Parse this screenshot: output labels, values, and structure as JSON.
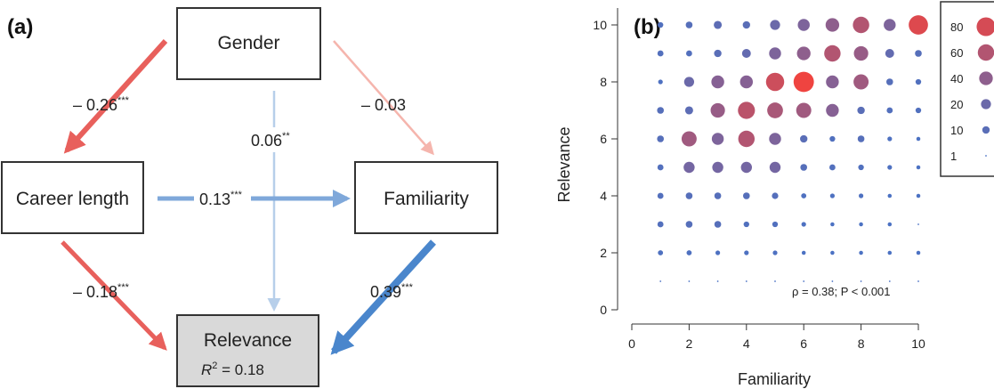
{
  "panel_a": {
    "label": "(a)",
    "nodes": {
      "gender": "Gender",
      "career": "Career length",
      "familiarity": "Familiarity",
      "relevance": "Relevance",
      "r2_prefix": "R",
      "r2_sup": "2",
      "r2_value": " = 0.18"
    },
    "paths": {
      "gender_career": {
        "coef": "– 0.26",
        "sig": "***"
      },
      "gender_familiarity": {
        "coef": "– 0.03",
        "sig": ""
      },
      "gender_relevance": {
        "coef": "0.06",
        "sig": "**"
      },
      "career_familiarity": {
        "coef": "0.13",
        "sig": "***"
      },
      "career_relevance": {
        "coef": "– 0.18",
        "sig": "***"
      },
      "familiarity_relevance": {
        "coef": "0.39",
        "sig": "***"
      }
    },
    "colors": {
      "negative_strong": "#e8605c",
      "negative_weak": "#f5b5ad",
      "positive_strong": "#4a86cc",
      "positive_mid": "#7fa8da",
      "positive_weak": "#b7cfea",
      "relevance_fill": "#d9d9d9"
    }
  },
  "panel_b": {
    "label": "(b)",
    "annotation": "ρ = 0.38; P < 0.001",
    "legend_title_hidden": "",
    "chart_data": {
      "type": "scatter",
      "xlabel": "Familiarity",
      "ylabel": "Relevance",
      "xlim": [
        0,
        10
      ],
      "ylim": [
        0,
        10
      ],
      "xticks": [
        0,
        2,
        4,
        6,
        8,
        10
      ],
      "yticks": [
        0,
        2,
        4,
        6,
        8,
        10
      ],
      "legend_entries": [
        80,
        60,
        40,
        20,
        10,
        1
      ],
      "legend_position": "top-right",
      "points": [
        [
          1,
          1,
          1
        ],
        [
          2,
          1,
          1
        ],
        [
          3,
          1,
          1
        ],
        [
          4,
          1,
          1
        ],
        [
          5,
          1,
          1
        ],
        [
          6,
          1,
          1
        ],
        [
          7,
          1,
          1
        ],
        [
          8,
          1,
          1
        ],
        [
          9,
          1,
          1
        ],
        [
          10,
          1,
          1
        ],
        [
          1,
          2,
          4
        ],
        [
          2,
          2,
          4
        ],
        [
          3,
          2,
          3
        ],
        [
          4,
          2,
          3
        ],
        [
          5,
          2,
          3
        ],
        [
          6,
          2,
          2
        ],
        [
          7,
          2,
          2
        ],
        [
          8,
          2,
          2
        ],
        [
          9,
          2,
          2
        ],
        [
          10,
          2,
          2
        ],
        [
          1,
          3,
          6
        ],
        [
          2,
          3,
          8
        ],
        [
          3,
          3,
          8
        ],
        [
          4,
          3,
          5
        ],
        [
          5,
          3,
          5
        ],
        [
          6,
          3,
          3
        ],
        [
          7,
          3,
          2
        ],
        [
          8,
          3,
          2
        ],
        [
          9,
          3,
          2
        ],
        [
          10,
          3,
          1
        ],
        [
          1,
          4,
          6
        ],
        [
          2,
          4,
          8
        ],
        [
          3,
          4,
          8
        ],
        [
          4,
          4,
          8
        ],
        [
          5,
          4,
          7
        ],
        [
          6,
          4,
          4
        ],
        [
          7,
          4,
          3
        ],
        [
          8,
          4,
          3
        ],
        [
          9,
          4,
          2
        ],
        [
          10,
          4,
          2
        ],
        [
          1,
          5,
          6
        ],
        [
          2,
          5,
          25
        ],
        [
          3,
          5,
          25
        ],
        [
          4,
          5,
          25
        ],
        [
          5,
          5,
          25
        ],
        [
          6,
          5,
          8
        ],
        [
          7,
          5,
          6
        ],
        [
          8,
          5,
          5
        ],
        [
          9,
          5,
          3
        ],
        [
          10,
          5,
          2
        ],
        [
          1,
          6,
          8
        ],
        [
          2,
          6,
          50
        ],
        [
          3,
          6,
          30
        ],
        [
          4,
          6,
          60
        ],
        [
          5,
          6,
          30
        ],
        [
          6,
          6,
          10
        ],
        [
          7,
          6,
          5
        ],
        [
          8,
          6,
          8
        ],
        [
          9,
          6,
          3
        ],
        [
          10,
          6,
          2
        ],
        [
          1,
          7,
          8
        ],
        [
          2,
          7,
          12
        ],
        [
          3,
          7,
          45
        ],
        [
          4,
          7,
          65
        ],
        [
          5,
          7,
          55
        ],
        [
          6,
          7,
          50
        ],
        [
          7,
          7,
          35
        ],
        [
          8,
          7,
          10
        ],
        [
          9,
          7,
          6
        ],
        [
          10,
          7,
          5
        ],
        [
          1,
          8,
          3
        ],
        [
          2,
          8,
          20
        ],
        [
          3,
          8,
          35
        ],
        [
          4,
          8,
          35
        ],
        [
          5,
          8,
          75
        ],
        [
          6,
          8,
          95
        ],
        [
          7,
          8,
          35
        ],
        [
          8,
          8,
          50
        ],
        [
          9,
          8,
          8
        ],
        [
          10,
          8,
          5
        ],
        [
          1,
          9,
          6
        ],
        [
          2,
          9,
          6
        ],
        [
          3,
          9,
          10
        ],
        [
          4,
          9,
          15
        ],
        [
          5,
          9,
          30
        ],
        [
          6,
          9,
          40
        ],
        [
          7,
          9,
          60
        ],
        [
          8,
          9,
          45
        ],
        [
          9,
          9,
          15
        ],
        [
          10,
          9,
          8
        ],
        [
          1,
          10,
          5
        ],
        [
          2,
          10,
          8
        ],
        [
          3,
          10,
          12
        ],
        [
          4,
          10,
          10
        ],
        [
          5,
          10,
          20
        ],
        [
          6,
          10,
          30
        ],
        [
          7,
          10,
          40
        ],
        [
          8,
          10,
          60
        ],
        [
          9,
          10,
          30
        ],
        [
          10,
          10,
          85
        ]
      ]
    }
  }
}
